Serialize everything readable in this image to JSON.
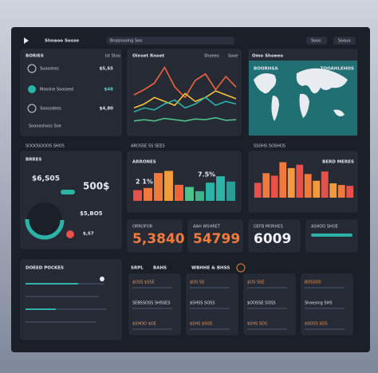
{
  "header": {
    "brand": "Shnaoo Sosse",
    "search": "Bnasnooing Seo",
    "buttons": [
      "Sooo",
      "Soouo"
    ]
  },
  "summary": {
    "title": "BORIES",
    "tag": "Ist Stoo",
    "rows": [
      {
        "label": "Suooshes",
        "value": "$5,S5"
      },
      {
        "label": "Mooshe Sooseed",
        "value": "$48"
      },
      {
        "label": "Sooosdees",
        "value": "$4,80"
      }
    ],
    "footer": "Sooooshoos Soe"
  },
  "map": {
    "header": "Omo Shoeeo",
    "title": "BOORHSA",
    "subtitle": "TOOAHLEHOS"
  },
  "section_labels": [
    "SOOOSOOOS SHOS",
    "AROSSE SS SEES",
    "SSOHS SOSHOS"
  ],
  "balance": {
    "title": "BRRES",
    "values": [
      "$6,S05",
      "500$",
      "$5,BO5",
      "$,S7"
    ]
  },
  "kpis": [
    {
      "title": "ORROFOR",
      "value": "5,3840"
    },
    {
      "title": "AAH WSHRET",
      "value": "54799"
    },
    {
      "title": "GEFB MORHES",
      "value": "6009"
    },
    {
      "title": "ASHOO SHOE"
    }
  ],
  "bottom": {
    "title": "DOEED POCKES",
    "labels": [
      "SRPL",
      "BAHS",
      "WBHHE & BHSS"
    ],
    "cards": [
      [
        "$OSS $SSE",
        "SEBSSOSS SHSSES",
        "$SHOO $OE"
      ],
      [
        "$OS SS",
        "$SHSS SOSS",
        "$SHS $SOS"
      ],
      [
        "$OS SSE",
        "$OOSSE SOSS",
        "$SHS SOS"
      ],
      [
        "BOSSOS",
        "Shoesing SHS",
        "$SOSS SOS"
      ]
    ]
  },
  "chart_data": [
    {
      "type": "line",
      "title": "Oinset Rnoet",
      "legend": [
        "Shoeeo",
        "Sooe"
      ],
      "categories": [
        null,
        null,
        null,
        null,
        null,
        null,
        null,
        null,
        null,
        null,
        null
      ],
      "ylim": [
        0,
        100
      ],
      "series": [
        {
          "color": "#f0643c",
          "values": [
            50,
            58,
            68,
            92,
            62,
            46,
            72,
            82,
            58,
            78,
            62
          ]
        },
        {
          "color": "#f2c23a",
          "values": [
            30,
            36,
            46,
            40,
            34,
            52,
            40,
            46,
            56,
            50,
            44
          ]
        },
        {
          "color": "#2bb3a8",
          "values": [
            24,
            30,
            27,
            36,
            42,
            30,
            36,
            46,
            34,
            40,
            36
          ]
        },
        {
          "color": "#4fc18a",
          "values": [
            10,
            12,
            10,
            14,
            12,
            10,
            13,
            12,
            15,
            11,
            12
          ]
        }
      ]
    },
    {
      "type": "bar",
      "title": "ARRONES",
      "annotations": [
        "7.5%",
        "2 1%"
      ],
      "ylim": [
        0,
        70
      ],
      "categories": [
        null,
        null,
        null,
        null,
        null,
        null,
        null,
        null,
        null,
        null
      ],
      "values": [
        20,
        24,
        52,
        56,
        30,
        26,
        18,
        34,
        46,
        36
      ],
      "colors": [
        "#e8504a",
        "#f07a3c",
        "#f07a3c",
        "#f39a3c",
        "#f0643c",
        "#4fc18a",
        "#3fb38a",
        "#2bb3a8",
        "#2bb3a8",
        "#2a9d98"
      ]
    },
    {
      "type": "bar",
      "title": "BERD MERES",
      "ylim": [
        0,
        100
      ],
      "categories": [
        null,
        null,
        null,
        null,
        null,
        null,
        null,
        null,
        null,
        null,
        null,
        null
      ],
      "values": [
        35,
        58,
        52,
        84,
        70,
        78,
        56,
        40,
        62,
        34,
        30,
        28
      ],
      "colors": [
        "#e8504a",
        "#f07a3c",
        "#e8504a",
        "#f07a3c",
        "#f39a3c",
        "#e8504a",
        "#f07a3c",
        "#f39a3c",
        "#e8504a",
        "#f39a3c",
        "#f07a3c",
        "#e8504a"
      ]
    }
  ]
}
